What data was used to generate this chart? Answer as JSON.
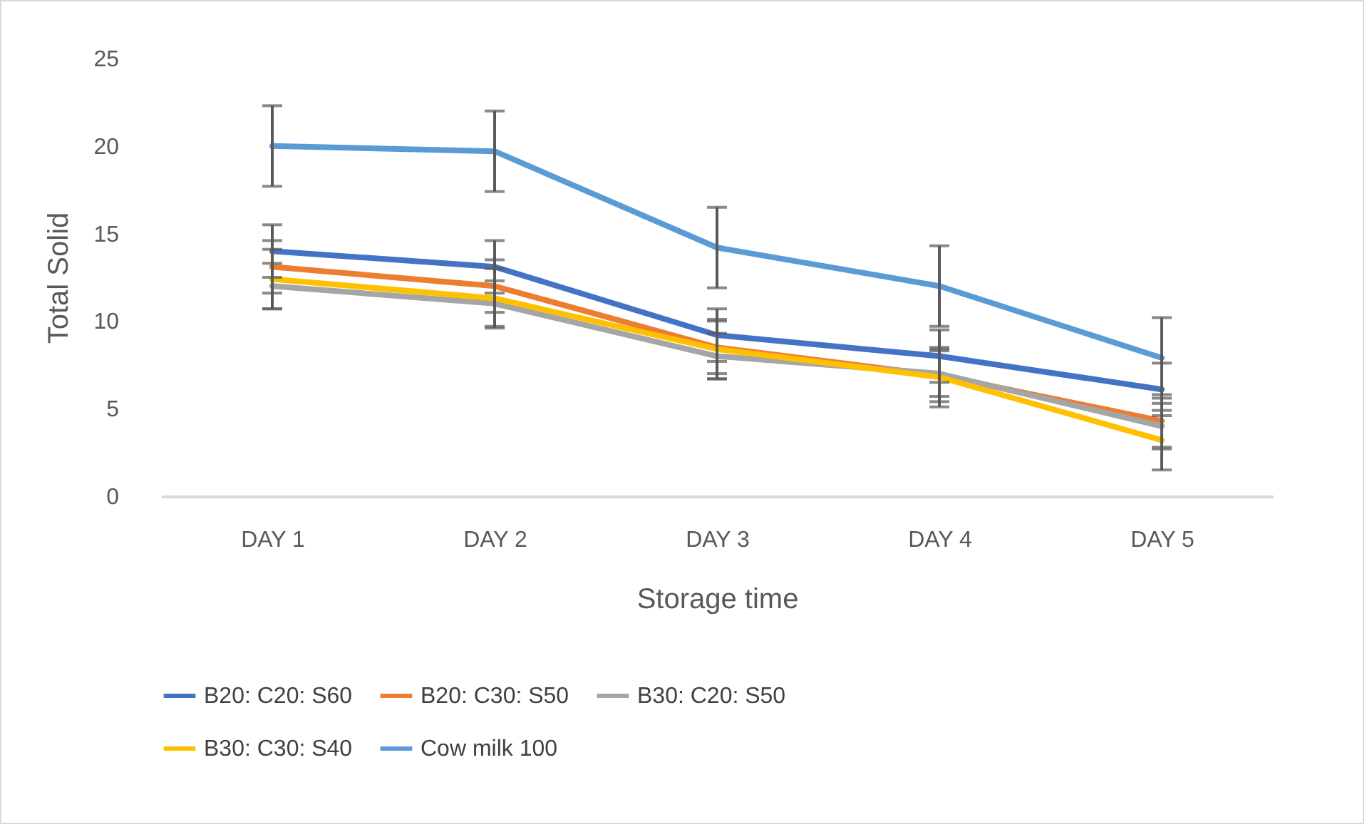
{
  "chart_data": {
    "type": "line",
    "xlabel": "Storage time",
    "ylabel": "Total Solid",
    "categories": [
      "DAY 1",
      "DAY 2",
      "DAY 3",
      "DAY 4",
      "DAY 5"
    ],
    "ylim": [
      0,
      25
    ],
    "yticks": [
      0,
      5,
      10,
      15,
      20,
      25
    ],
    "grid": false,
    "legend": "bottom",
    "marker": "none",
    "line_style": "solid",
    "series": [
      {
        "name": "B20: C20: S60",
        "color": "#4472c4",
        "values": [
          14,
          13.1,
          9.2,
          8,
          6.1
        ],
        "errors": [
          1.5,
          1.5,
          1.5,
          1.5,
          1.5
        ]
      },
      {
        "name": "B20: C30: S50",
        "color": "#ed7d31",
        "values": [
          13.1,
          12,
          8.5,
          6.9,
          4.3
        ],
        "errors": [
          1.5,
          1.5,
          1.5,
          1.5,
          1.5
        ]
      },
      {
        "name": "B30: C20: S50",
        "color": "#a5a5a5",
        "values": [
          12,
          11,
          8,
          7,
          4
        ],
        "errors": [
          1.3,
          1.3,
          1.3,
          1.3,
          1.3
        ]
      },
      {
        "name": "B30: C30: S40",
        "color": "#ffc000",
        "values": [
          12.4,
          11.3,
          8.4,
          6.8,
          3.2
        ],
        "errors": [
          1.7,
          1.7,
          1.7,
          1.7,
          1.7
        ]
      },
      {
        "name": "Cow milk 100",
        "color": "#5b9bd5",
        "values": [
          20,
          19.7,
          14.2,
          12,
          7.9
        ],
        "errors": [
          2.3,
          2.3,
          2.3,
          2.3,
          2.3
        ]
      }
    ]
  }
}
